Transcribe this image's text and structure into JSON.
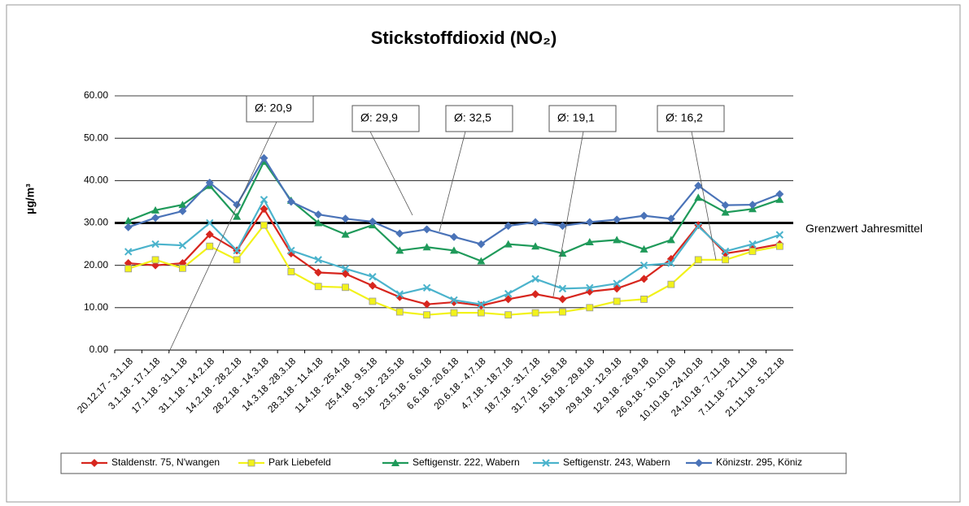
{
  "chart_data": {
    "type": "line",
    "title": "Stickstoffdioxid (NO₂)",
    "y_label": "µg/m³",
    "categories": [
      "20.12.17 - 3.1.18",
      "3.1.18 - 17.1.18",
      "17.1.18 - 31.1.18",
      "31.1.18 - 14.2.18",
      "14.2.18 - 28.2.18",
      "28.2.18 - 14.3.18",
      "14.3.18 -28.3.18",
      "28.3.18 - 11.4.18",
      "11.4.18 - 25.4.18",
      "25.4.18 - 9.5.18",
      "9.5.18 - 23.5.18",
      "23.5.18 - 6.6.18",
      "6.6.18 - 20.6.18",
      "20.6.18 - 4.7.18",
      "4.7.18 - 18.7.18",
      "18.7.18 - 31.7.18",
      "31.7.18 - 15.8.18",
      "15.8.18 - 29.8.18",
      "29.8.18 - 12.9.18",
      "12.9.18 - 26.9.18",
      "26.9.18 - 10.10.18",
      "10.10.18 - 24.10.18",
      "24.10.18 - 7.11.18",
      "7.11.18 - 21.11.18",
      "21.11.18 - 5.12.18"
    ],
    "series": [
      {
        "name": "Staldenstr. 75, N'wangen",
        "color": "#d7261e",
        "marker": "diamond",
        "values": [
          20.5,
          20,
          20.5,
          27.3,
          23.5,
          33.3,
          22.8,
          18.3,
          18,
          15.2,
          12.5,
          10.8,
          11.3,
          10.5,
          12,
          13.2,
          12,
          13.8,
          14.5,
          16.8,
          21.5,
          29.5,
          22.8,
          23.8,
          25
        ]
      },
      {
        "name": "Park Liebefeld",
        "color": "#f2f21a",
        "marker": "square",
        "values": [
          19.2,
          21.3,
          19.3,
          24.5,
          21.3,
          29.5,
          18.5,
          15,
          14.8,
          11.5,
          9,
          8.3,
          8.8,
          8.8,
          8.3,
          8.8,
          9,
          10,
          11.5,
          12,
          15.5,
          21.3,
          21.3,
          23.3,
          24.5
        ]
      },
      {
        "name": "Seftigenstr. 222, Wabern",
        "color": "#1f9a5a",
        "marker": "triangle",
        "values": [
          30.5,
          33,
          34.3,
          38.8,
          31.5,
          44.5,
          35.3,
          30,
          27.3,
          29.5,
          23.5,
          24.3,
          23.5,
          21,
          25,
          24.5,
          22.8,
          25.5,
          26,
          23.8,
          26,
          36,
          32.5,
          33.3,
          35.5
        ]
      },
      {
        "name": "Seftigenstr. 243, Wabern",
        "color": "#4bb3cc",
        "marker": "cross",
        "values": [
          23.2,
          25,
          24.7,
          30,
          23.5,
          35.5,
          23.5,
          21.3,
          19.2,
          17.3,
          13.2,
          14.7,
          11.8,
          10.8,
          13.3,
          16.8,
          14.5,
          14.7,
          15.7,
          20,
          20.5,
          29.2,
          23.3,
          25,
          27.2
        ]
      },
      {
        "name": "Könizstr. 295, Köniz",
        "color": "#4a73b8",
        "marker": "diamond",
        "values": [
          29,
          31.2,
          32.8,
          39.5,
          34.3,
          45.3,
          35,
          32,
          31,
          30.3,
          27.5,
          28.5,
          26.7,
          25,
          29.3,
          30.2,
          29.3,
          30.2,
          30.8,
          31.7,
          31,
          38.8,
          34.2,
          34.3,
          36.8
        ]
      }
    ],
    "ylim": [
      0,
      60
    ],
    "yticks": [
      {
        "value": 0,
        "label": "0.00"
      },
      {
        "value": 10,
        "label": "10.00"
      },
      {
        "value": 20,
        "label": "20.00"
      },
      {
        "value": 30,
        "label": "30.00"
      },
      {
        "value": 40,
        "label": "40.00"
      },
      {
        "value": 50,
        "label": "50.00"
      },
      {
        "value": 60,
        "label": "60.00"
      }
    ],
    "grid": true,
    "reference_line": {
      "value": 30,
      "label": "Grenzwert Jahresmittel"
    },
    "annotations": [
      "Ø: 20,9",
      "Ø: 29,9",
      "Ø: 32,5",
      "Ø: 19,1",
      "Ø: 16,2"
    ],
    "legend": "bottom"
  }
}
